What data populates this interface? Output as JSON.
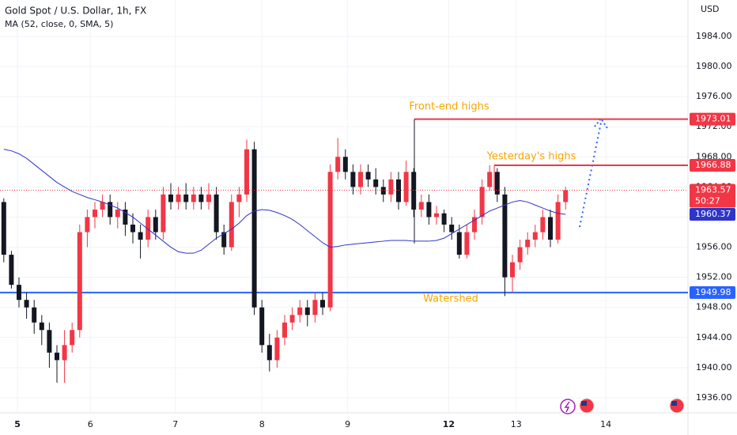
{
  "chart_data": {
    "type": "candlestick",
    "title": "Gold Spot / U.S. Dollar, 1h, FX",
    "subtitle": "MA (52, close, 0, SMA, 5)",
    "currency": "USD",
    "countdown": "50:27",
    "up_color": "#f23645",
    "down_color": "#131722",
    "ylim": [
      1934.0,
      1988.83
    ],
    "yticks": [
      {
        "value": 1936,
        "label": "1936.00"
      },
      {
        "value": 1940,
        "label": "1940.00"
      },
      {
        "value": 1944,
        "label": "1944.00"
      },
      {
        "value": 1948,
        "label": "1948.00"
      },
      {
        "value": 1952,
        "label": "1952.00"
      },
      {
        "value": 1956,
        "label": "1956.00"
      },
      {
        "value": 1960,
        "label": "1960.00"
      },
      {
        "value": 1964,
        "label": "1964.00"
      },
      {
        "value": 1968,
        "label": "1968.00"
      },
      {
        "value": 1972,
        "label": "1972.00"
      },
      {
        "value": 1976,
        "label": "1976.00"
      },
      {
        "value": 1980,
        "label": "1980.00"
      },
      {
        "value": 1984,
        "label": "1984.00"
      }
    ],
    "xlim": [
      -0.5,
      90.125
    ],
    "xticks": [
      {
        "value": 1.8,
        "label": "5"
      },
      {
        "value": 11.4,
        "label": "6"
      },
      {
        "value": 22.6,
        "label": "7"
      },
      {
        "value": 34,
        "label": "8"
      },
      {
        "value": 45.3,
        "label": "9"
      },
      {
        "value": 58.6,
        "label": "12"
      },
      {
        "value": 67.5,
        "label": "13"
      },
      {
        "value": 79.3,
        "label": "14"
      }
    ],
    "ohlc": [
      [
        1962,
        1962.5,
        1954,
        1955
      ],
      [
        1955,
        1955.5,
        1950.5,
        1951
      ],
      [
        1951,
        1952,
        1948,
        1949
      ],
      [
        1949,
        1950,
        1946.5,
        1948
      ],
      [
        1948,
        1949,
        1944.5,
        1946
      ],
      [
        1946,
        1947,
        1943,
        1945
      ],
      [
        1945,
        1946,
        1940,
        1942
      ],
      [
        1942,
        1943,
        1938,
        1941
      ],
      [
        1941,
        1945,
        1938,
        1943
      ],
      [
        1943,
        1946,
        1942,
        1945
      ],
      [
        1945,
        1959,
        1944,
        1958
      ],
      [
        1958,
        1961,
        1956,
        1960
      ],
      [
        1960,
        1962,
        1958.5,
        1961
      ],
      [
        1961,
        1963,
        1960,
        1962
      ],
      [
        1962,
        1963,
        1959,
        1960
      ],
      [
        1960,
        1962,
        1958.5,
        1961
      ],
      [
        1961,
        1962,
        1957.5,
        1959
      ],
      [
        1959,
        1960.5,
        1956.5,
        1958
      ],
      [
        1958,
        1959,
        1954.5,
        1957
      ],
      [
        1957,
        1961,
        1956,
        1960
      ],
      [
        1960,
        1961,
        1957,
        1958
      ],
      [
        1958,
        1964,
        1957,
        1963
      ],
      [
        1963,
        1964.5,
        1961,
        1962
      ],
      [
        1962,
        1964,
        1961,
        1963
      ],
      [
        1963,
        1964.5,
        1961,
        1962
      ],
      [
        1962,
        1964,
        1961,
        1963
      ],
      [
        1963,
        1964,
        1961,
        1962
      ],
      [
        1962,
        1964.5,
        1961,
        1963
      ],
      [
        1963,
        1964,
        1957,
        1958
      ],
      [
        1958,
        1959,
        1955,
        1956
      ],
      [
        1956,
        1963,
        1955.5,
        1962
      ],
      [
        1962,
        1964,
        1960,
        1963
      ],
      [
        1963,
        1970.3,
        1962,
        1969
      ],
      [
        1969,
        1970,
        1947,
        1948
      ],
      [
        1948,
        1949,
        1942,
        1943
      ],
      [
        1943,
        1944.5,
        1939.5,
        1941
      ],
      [
        1941,
        1945,
        1940,
        1944
      ],
      [
        1944,
        1947,
        1943,
        1946
      ],
      [
        1946,
        1948,
        1945,
        1947
      ],
      [
        1947,
        1949,
        1946,
        1948
      ],
      [
        1948,
        1949,
        1945.5,
        1947
      ],
      [
        1947,
        1950,
        1946,
        1949
      ],
      [
        1949,
        1950,
        1947,
        1948
      ],
      [
        1948,
        1967,
        1947.5,
        1966
      ],
      [
        1966,
        1970.5,
        1965,
        1968
      ],
      [
        1968,
        1969,
        1965,
        1966
      ],
      [
        1966,
        1967,
        1963,
        1964
      ],
      [
        1964,
        1967,
        1963,
        1966
      ],
      [
        1966,
        1967,
        1964,
        1965
      ],
      [
        1965,
        1966.5,
        1963,
        1964
      ],
      [
        1964,
        1965,
        1962,
        1963
      ],
      [
        1963,
        1966,
        1962,
        1965
      ],
      [
        1965,
        1966,
        1961,
        1962
      ],
      [
        1962,
        1967.5,
        1961.5,
        1966
      ],
      [
        1966,
        1966.5,
        1960,
        1961
      ],
      [
        1961,
        1963,
        1960,
        1962
      ],
      [
        1962,
        1963,
        1959,
        1960
      ],
      [
        1960,
        1961.5,
        1959,
        1960.5
      ],
      [
        1960.5,
        1961,
        1958,
        1959
      ],
      [
        1959,
        1960,
        1957,
        1958
      ],
      [
        1958,
        1959,
        1954.5,
        1955
      ],
      [
        1955,
        1959,
        1954.5,
        1958
      ],
      [
        1958,
        1961,
        1957,
        1960
      ],
      [
        1960,
        1965,
        1959,
        1964
      ],
      [
        1964,
        1966.88,
        1963.5,
        1966
      ],
      [
        1966,
        1966.5,
        1962,
        1963
      ],
      [
        1963,
        1964,
        1949.5,
        1952
      ],
      [
        1952,
        1955,
        1950,
        1954
      ],
      [
        1954,
        1957,
        1953,
        1956
      ],
      [
        1956,
        1958,
        1955,
        1957
      ],
      [
        1957,
        1959,
        1956,
        1958
      ],
      [
        1958,
        1961,
        1957,
        1960
      ],
      [
        1960,
        1961,
        1956,
        1957
      ],
      [
        1957,
        1963,
        1956.5,
        1962
      ],
      [
        1962,
        1964,
        1961,
        1963.57
      ]
    ],
    "ma": {
      "color": "#2e35c8",
      "values": [
        1969,
        1968.8,
        1968.4,
        1967.8,
        1967,
        1966.2,
        1965.4,
        1964.6,
        1964,
        1963.4,
        1963,
        1962.6,
        1962.3,
        1962,
        1961.6,
        1961.2,
        1960.6,
        1960,
        1959.2,
        1958.4,
        1957.6,
        1956.8,
        1956,
        1955.4,
        1955.2,
        1955.2,
        1955.6,
        1956.4,
        1957.2,
        1957.8,
        1958.4,
        1959.2,
        1960.2,
        1960.8,
        1961,
        1960.9,
        1960.6,
        1960.2,
        1959.7,
        1959,
        1958.2,
        1957.4,
        1956.6,
        1956,
        1956.1,
        1956.3,
        1956.4,
        1956.5,
        1956.6,
        1956.7,
        1956.8,
        1956.9,
        1956.9,
        1956.9,
        1956.8,
        1956.8,
        1956.8,
        1956.9,
        1957.2,
        1957.8,
        1958.4,
        1959,
        1959.6,
        1960.2,
        1960.8,
        1961.2,
        1961.6,
        1962,
        1962.2,
        1962,
        1961.6,
        1961.2,
        1960.8,
        1960.5,
        1960.37
      ]
    },
    "levels": [
      {
        "name": "Front-end highs",
        "value": 1973.01,
        "color": "#f23645"
      },
      {
        "name": "Yesterday's highs",
        "value": 1966.88,
        "color": "#f23645"
      },
      {
        "name": "Watershed",
        "value": 1949.98,
        "color": "#2962ff"
      }
    ]
  }
}
